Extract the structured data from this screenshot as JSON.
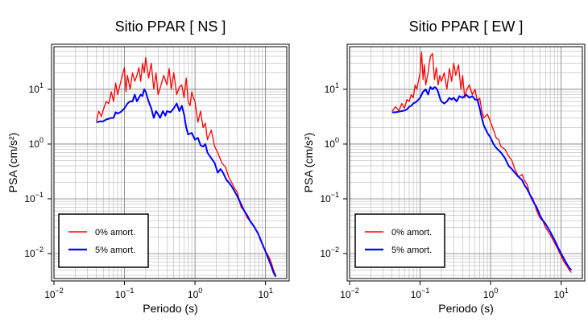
{
  "chart_data": [
    {
      "type": "line",
      "title": "Sitio PPAR [ NS ]",
      "xlabel": "Periodo (s)",
      "ylabel": "PSA (cm/s²)",
      "xscale": "log",
      "yscale": "log",
      "xlim": [
        0.01,
        20
      ],
      "ylim": [
        0.0035,
        60
      ],
      "grid": true,
      "legend_position": "bottom-left",
      "x_ticks": [
        {
          "value": 0.01,
          "base": "10",
          "exp": "−2"
        },
        {
          "value": 0.1,
          "base": "10",
          "exp": "−1"
        },
        {
          "value": 1,
          "base": "10",
          "exp": "0"
        },
        {
          "value": 10,
          "base": "10",
          "exp": "1"
        }
      ],
      "y_ticks": [
        {
          "value": 0.01,
          "base": "10",
          "exp": "−2"
        },
        {
          "value": 0.1,
          "base": "10",
          "exp": "−1"
        },
        {
          "value": 1,
          "base": "10",
          "exp": "0"
        },
        {
          "value": 10,
          "base": "10",
          "exp": "1"
        }
      ],
      "series": [
        {
          "name": "0% amort.",
          "color": "#ff0000",
          "x": [
            0.04,
            0.043,
            0.047,
            0.05,
            0.055,
            0.06,
            0.065,
            0.07,
            0.075,
            0.08,
            0.09,
            0.1,
            0.105,
            0.11,
            0.12,
            0.13,
            0.14,
            0.15,
            0.16,
            0.17,
            0.18,
            0.19,
            0.2,
            0.22,
            0.24,
            0.26,
            0.28,
            0.3,
            0.33,
            0.36,
            0.4,
            0.43,
            0.46,
            0.5,
            0.55,
            0.6,
            0.65,
            0.7,
            0.75,
            0.8,
            0.85,
            0.9,
            0.95,
            1.0,
            1.1,
            1.2,
            1.3,
            1.4,
            1.5,
            1.7,
            1.9,
            2.1,
            2.4,
            2.7,
            3.0,
            3.3,
            3.6,
            4.0,
            4.5,
            5.0,
            5.5,
            6.0,
            7.0,
            8.0,
            9.0,
            10.0,
            11.0,
            12.0,
            13.0,
            14.0
          ],
          "y": [
            2.6,
            4.0,
            3.2,
            4.2,
            6.0,
            5.5,
            9.0,
            6.0,
            13.0,
            8.0,
            15.0,
            25.0,
            9.0,
            18.0,
            10.0,
            20.0,
            14.0,
            18.0,
            25.0,
            14.0,
            30.0,
            20.0,
            38.0,
            16.0,
            30.0,
            10.0,
            20.0,
            8.0,
            12.0,
            18.0,
            12.0,
            24.0,
            10.0,
            20.0,
            8.0,
            11.0,
            12.0,
            7.0,
            16.0,
            6.0,
            5.0,
            9.0,
            7.0,
            6.0,
            2.5,
            4.0,
            2.0,
            2.4,
            1.2,
            1.8,
            0.9,
            0.7,
            0.45,
            0.38,
            0.25,
            0.2,
            0.16,
            0.13,
            0.07,
            0.06,
            0.045,
            0.04,
            0.03,
            0.022,
            0.015,
            0.011,
            0.009,
            0.007,
            0.005,
            0.004
          ]
        },
        {
          "name": "5% amort.",
          "color": "#0000ff",
          "x": [
            0.04,
            0.045,
            0.05,
            0.055,
            0.06,
            0.065,
            0.07,
            0.075,
            0.08,
            0.09,
            0.1,
            0.11,
            0.12,
            0.13,
            0.14,
            0.15,
            0.16,
            0.17,
            0.18,
            0.19,
            0.2,
            0.22,
            0.24,
            0.26,
            0.28,
            0.3,
            0.32,
            0.35,
            0.38,
            0.4,
            0.45,
            0.5,
            0.55,
            0.6,
            0.65,
            0.7,
            0.75,
            0.8,
            0.9,
            1.0,
            1.1,
            1.2,
            1.3,
            1.4,
            1.5,
            1.7,
            1.9,
            2.1,
            2.3,
            2.5,
            2.8,
            3.0,
            3.3,
            3.6,
            4.0,
            4.5,
            5.0,
            5.5,
            6.0,
            7.0,
            8.0,
            9.0,
            10.0,
            11.0,
            12.0,
            13.0,
            14.0
          ],
          "y": [
            2.5,
            2.6,
            2.6,
            2.8,
            2.9,
            3.0,
            3.0,
            3.8,
            3.6,
            3.9,
            4.5,
            5.5,
            6.0,
            6.0,
            8.0,
            6.0,
            7.0,
            8.0,
            7.5,
            10.0,
            9.0,
            6.0,
            4.5,
            3.0,
            4.0,
            3.5,
            3.0,
            4.0,
            3.3,
            4.0,
            3.8,
            4.5,
            5.5,
            4.0,
            5.0,
            3.5,
            2.0,
            1.5,
            1.6,
            1.2,
            1.3,
            0.95,
            0.9,
            1.0,
            0.7,
            0.55,
            0.45,
            0.3,
            0.35,
            0.3,
            0.22,
            0.2,
            0.17,
            0.14,
            0.11,
            0.08,
            0.06,
            0.05,
            0.04,
            0.03,
            0.022,
            0.015,
            0.011,
            0.008,
            0.006,
            0.0045,
            0.0038
          ]
        }
      ]
    },
    {
      "type": "line",
      "title": "Sitio PPAR [ EW ]",
      "xlabel": "Periodo (s)",
      "ylabel": "PSA (cm/s²)",
      "xscale": "log",
      "yscale": "log",
      "xlim": [
        0.01,
        20
      ],
      "ylim": [
        0.0035,
        60
      ],
      "grid": true,
      "legend_position": "bottom-left",
      "x_ticks": [
        {
          "value": 0.01,
          "base": "10",
          "exp": "−2"
        },
        {
          "value": 0.1,
          "base": "10",
          "exp": "−1"
        },
        {
          "value": 1,
          "base": "10",
          "exp": "0"
        },
        {
          "value": 10,
          "base": "10",
          "exp": "1"
        }
      ],
      "y_ticks": [
        {
          "value": 0.01,
          "base": "10",
          "exp": "−2"
        },
        {
          "value": 0.1,
          "base": "10",
          "exp": "−1"
        },
        {
          "value": 1,
          "base": "10",
          "exp": "0"
        },
        {
          "value": 10,
          "base": "10",
          "exp": "1"
        }
      ],
      "series": [
        {
          "name": "0% amort.",
          "color": "#ff0000",
          "x": [
            0.04,
            0.045,
            0.05,
            0.055,
            0.06,
            0.065,
            0.07,
            0.075,
            0.08,
            0.085,
            0.09,
            0.1,
            0.105,
            0.11,
            0.115,
            0.12,
            0.13,
            0.14,
            0.15,
            0.16,
            0.17,
            0.18,
            0.19,
            0.2,
            0.22,
            0.24,
            0.26,
            0.28,
            0.3,
            0.32,
            0.35,
            0.38,
            0.4,
            0.43,
            0.46,
            0.5,
            0.55,
            0.6,
            0.65,
            0.7,
            0.75,
            0.8,
            0.9,
            1.0,
            1.1,
            1.2,
            1.3,
            1.4,
            1.6,
            1.8,
            2.0,
            2.2,
            2.5,
            2.8,
            3.0,
            3.3,
            3.6,
            4.0,
            4.5,
            5.0,
            5.5,
            6.0,
            7.0,
            8.0,
            9.0,
            10.0,
            11.0,
            12.0,
            13.0,
            14.0
          ],
          "y": [
            4.0,
            4.8,
            4.0,
            5.5,
            4.5,
            6.5,
            6.0,
            8.0,
            7.0,
            12.0,
            10.0,
            20.0,
            48.0,
            15.0,
            28.0,
            12.0,
            20.0,
            40.0,
            45.0,
            15.0,
            25.0,
            12.0,
            18.0,
            14.0,
            20.0,
            10.0,
            24.0,
            14.0,
            30.0,
            18.0,
            28.0,
            10.0,
            18.0,
            7.0,
            10.0,
            12.0,
            8.0,
            10.0,
            6.0,
            7.0,
            4.0,
            3.0,
            3.5,
            2.5,
            1.8,
            1.3,
            1.2,
            0.9,
            0.8,
            0.6,
            0.5,
            0.35,
            0.25,
            0.28,
            0.22,
            0.18,
            0.12,
            0.1,
            0.06,
            0.045,
            0.04,
            0.03,
            0.022,
            0.016,
            0.012,
            0.009,
            0.007,
            0.006,
            0.005,
            0.0045
          ]
        },
        {
          "name": "5% amort.",
          "color": "#0000ff",
          "x": [
            0.04,
            0.045,
            0.05,
            0.055,
            0.06,
            0.065,
            0.07,
            0.075,
            0.08,
            0.09,
            0.1,
            0.11,
            0.12,
            0.13,
            0.14,
            0.15,
            0.16,
            0.17,
            0.18,
            0.19,
            0.2,
            0.22,
            0.24,
            0.26,
            0.28,
            0.3,
            0.33,
            0.36,
            0.4,
            0.45,
            0.5,
            0.55,
            0.6,
            0.65,
            0.7,
            0.75,
            0.8,
            0.9,
            1.0,
            1.1,
            1.2,
            1.4,
            1.6,
            1.8,
            2.0,
            2.2,
            2.5,
            2.8,
            3.0,
            3.3,
            3.6,
            4.0,
            4.5,
            5.0,
            5.5,
            6.0,
            7.0,
            8.0,
            9.0,
            10.0,
            11.0,
            12.0,
            13.0,
            14.0
          ],
          "y": [
            3.8,
            3.8,
            3.9,
            4.0,
            4.1,
            4.3,
            4.8,
            5.0,
            5.5,
            6.0,
            7.0,
            9.0,
            10.0,
            8.0,
            11.0,
            10.0,
            11.0,
            10.5,
            9.0,
            7.0,
            6.0,
            5.5,
            6.0,
            7.0,
            6.5,
            7.0,
            6.0,
            7.5,
            7.0,
            8.0,
            7.0,
            7.5,
            6.5,
            6.5,
            4.5,
            3.0,
            2.2,
            1.6,
            1.3,
            1.0,
            0.85,
            0.7,
            0.55,
            0.4,
            0.35,
            0.3,
            0.25,
            0.22,
            0.18,
            0.15,
            0.12,
            0.09,
            0.07,
            0.05,
            0.04,
            0.035,
            0.025,
            0.018,
            0.013,
            0.01,
            0.008,
            0.0065,
            0.0055,
            0.005
          ]
        }
      ]
    }
  ]
}
